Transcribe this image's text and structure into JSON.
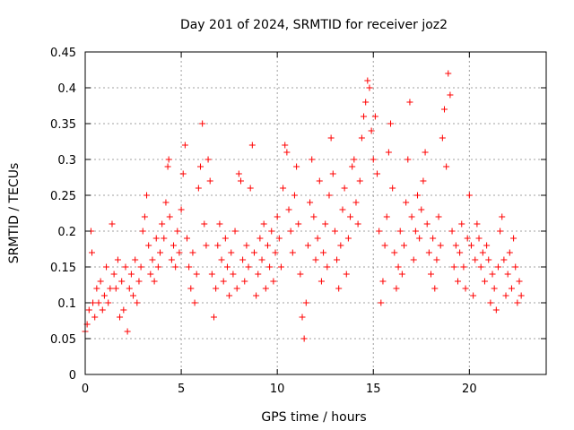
{
  "chart_data": {
    "type": "scatter",
    "title": "Day 201 of 2024, SRMTID for receiver joz2",
    "xlabel": "GPS time / hours",
    "ylabel": "SRMTID / TECUs",
    "xlim": [
      0,
      24
    ],
    "ylim": [
      0,
      0.45
    ],
    "x_ticks": [
      0,
      5,
      10,
      15,
      20
    ],
    "x_tick_labels": [
      "0",
      "5",
      "10",
      "15",
      "20"
    ],
    "y_ticks": [
      0,
      0.05,
      0.1,
      0.15,
      0.2,
      0.25,
      0.3,
      0.35,
      0.4,
      0.45
    ],
    "y_tick_labels": [
      "0",
      "0.05",
      "0.1",
      "0.15",
      "0.2",
      "0.25",
      "0.3",
      "0.35",
      "0.4",
      "0.45"
    ],
    "grid": true,
    "marker": "plus",
    "series": [
      {
        "name": "SRMTID",
        "color": "#ff0000",
        "points": [
          [
            0.0,
            0.06
          ],
          [
            0.1,
            0.07
          ],
          [
            0.2,
            0.09
          ],
          [
            0.3,
            0.2
          ],
          [
            0.35,
            0.17
          ],
          [
            0.4,
            0.1
          ],
          [
            0.5,
            0.08
          ],
          [
            0.6,
            0.12
          ],
          [
            0.7,
            0.1
          ],
          [
            0.8,
            0.13
          ],
          [
            0.9,
            0.09
          ],
          [
            1.0,
            0.11
          ],
          [
            1.1,
            0.15
          ],
          [
            1.2,
            0.1
          ],
          [
            1.3,
            0.12
          ],
          [
            1.4,
            0.21
          ],
          [
            1.5,
            0.14
          ],
          [
            1.6,
            0.12
          ],
          [
            1.7,
            0.16
          ],
          [
            1.8,
            0.08
          ],
          [
            1.9,
            0.13
          ],
          [
            2.0,
            0.09
          ],
          [
            2.1,
            0.15
          ],
          [
            2.2,
            0.06
          ],
          [
            2.3,
            0.12
          ],
          [
            2.4,
            0.14
          ],
          [
            2.5,
            0.11
          ],
          [
            2.6,
            0.16
          ],
          [
            2.7,
            0.1
          ],
          [
            2.8,
            0.13
          ],
          [
            2.9,
            0.15
          ],
          [
            3.0,
            0.2
          ],
          [
            3.1,
            0.22
          ],
          [
            3.2,
            0.25
          ],
          [
            3.3,
            0.18
          ],
          [
            3.4,
            0.14
          ],
          [
            3.5,
            0.16
          ],
          [
            3.6,
            0.13
          ],
          [
            3.7,
            0.19
          ],
          [
            3.8,
            0.15
          ],
          [
            3.9,
            0.17
          ],
          [
            4.0,
            0.21
          ],
          [
            4.1,
            0.19
          ],
          [
            4.2,
            0.24
          ],
          [
            4.3,
            0.29
          ],
          [
            4.35,
            0.3
          ],
          [
            4.4,
            0.22
          ],
          [
            4.5,
            0.16
          ],
          [
            4.6,
            0.18
          ],
          [
            4.7,
            0.15
          ],
          [
            4.8,
            0.2
          ],
          [
            4.9,
            0.17
          ],
          [
            5.0,
            0.23
          ],
          [
            5.1,
            0.28
          ],
          [
            5.2,
            0.32
          ],
          [
            5.3,
            0.19
          ],
          [
            5.4,
            0.15
          ],
          [
            5.5,
            0.12
          ],
          [
            5.6,
            0.17
          ],
          [
            5.7,
            0.1
          ],
          [
            5.8,
            0.14
          ],
          [
            5.9,
            0.26
          ],
          [
            6.0,
            0.29
          ],
          [
            6.1,
            0.35
          ],
          [
            6.2,
            0.21
          ],
          [
            6.3,
            0.18
          ],
          [
            6.4,
            0.3
          ],
          [
            6.5,
            0.27
          ],
          [
            6.6,
            0.14
          ],
          [
            6.7,
            0.08
          ],
          [
            6.8,
            0.12
          ],
          [
            6.9,
            0.18
          ],
          [
            7.0,
            0.21
          ],
          [
            7.1,
            0.16
          ],
          [
            7.2,
            0.13
          ],
          [
            7.3,
            0.19
          ],
          [
            7.4,
            0.15
          ],
          [
            7.5,
            0.11
          ],
          [
            7.6,
            0.17
          ],
          [
            7.7,
            0.14
          ],
          [
            7.8,
            0.2
          ],
          [
            7.9,
            0.12
          ],
          [
            8.0,
            0.28
          ],
          [
            8.1,
            0.27
          ],
          [
            8.2,
            0.16
          ],
          [
            8.3,
            0.13
          ],
          [
            8.4,
            0.18
          ],
          [
            8.5,
            0.15
          ],
          [
            8.6,
            0.26
          ],
          [
            8.7,
            0.32
          ],
          [
            8.8,
            0.17
          ],
          [
            8.9,
            0.11
          ],
          [
            9.0,
            0.14
          ],
          [
            9.1,
            0.19
          ],
          [
            9.2,
            0.16
          ],
          [
            9.3,
            0.21
          ],
          [
            9.4,
            0.12
          ],
          [
            9.5,
            0.18
          ],
          [
            9.6,
            0.15
          ],
          [
            9.7,
            0.2
          ],
          [
            9.8,
            0.13
          ],
          [
            9.9,
            0.17
          ],
          [
            10.0,
            0.22
          ],
          [
            10.1,
            0.19
          ],
          [
            10.2,
            0.15
          ],
          [
            10.3,
            0.26
          ],
          [
            10.4,
            0.32
          ],
          [
            10.5,
            0.31
          ],
          [
            10.6,
            0.23
          ],
          [
            10.7,
            0.2
          ],
          [
            10.8,
            0.17
          ],
          [
            10.9,
            0.25
          ],
          [
            11.0,
            0.29
          ],
          [
            11.1,
            0.21
          ],
          [
            11.2,
            0.14
          ],
          [
            11.3,
            0.08
          ],
          [
            11.4,
            0.05
          ],
          [
            11.5,
            0.1
          ],
          [
            11.6,
            0.18
          ],
          [
            11.7,
            0.24
          ],
          [
            11.8,
            0.3
          ],
          [
            11.9,
            0.22
          ],
          [
            12.0,
            0.16
          ],
          [
            12.1,
            0.19
          ],
          [
            12.2,
            0.27
          ],
          [
            12.3,
            0.13
          ],
          [
            12.4,
            0.17
          ],
          [
            12.5,
            0.21
          ],
          [
            12.6,
            0.15
          ],
          [
            12.7,
            0.25
          ],
          [
            12.8,
            0.33
          ],
          [
            12.9,
            0.28
          ],
          [
            13.0,
            0.2
          ],
          [
            13.1,
            0.16
          ],
          [
            13.2,
            0.12
          ],
          [
            13.3,
            0.18
          ],
          [
            13.4,
            0.23
          ],
          [
            13.5,
            0.26
          ],
          [
            13.6,
            0.14
          ],
          [
            13.7,
            0.19
          ],
          [
            13.8,
            0.22
          ],
          [
            13.9,
            0.29
          ],
          [
            14.0,
            0.3
          ],
          [
            14.1,
            0.24
          ],
          [
            14.2,
            0.21
          ],
          [
            14.3,
            0.27
          ],
          [
            14.4,
            0.33
          ],
          [
            14.5,
            0.36
          ],
          [
            14.6,
            0.38
          ],
          [
            14.7,
            0.41
          ],
          [
            14.8,
            0.4
          ],
          [
            14.9,
            0.34
          ],
          [
            15.0,
            0.3
          ],
          [
            15.1,
            0.36
          ],
          [
            15.2,
            0.28
          ],
          [
            15.3,
            0.2
          ],
          [
            15.4,
            0.1
          ],
          [
            15.5,
            0.13
          ],
          [
            15.6,
            0.18
          ],
          [
            15.7,
            0.22
          ],
          [
            15.8,
            0.31
          ],
          [
            15.9,
            0.35
          ],
          [
            16.0,
            0.26
          ],
          [
            16.1,
            0.17
          ],
          [
            16.2,
            0.12
          ],
          [
            16.3,
            0.15
          ],
          [
            16.4,
            0.2
          ],
          [
            16.5,
            0.14
          ],
          [
            16.6,
            0.18
          ],
          [
            16.7,
            0.24
          ],
          [
            16.8,
            0.3
          ],
          [
            16.9,
            0.38
          ],
          [
            17.0,
            0.22
          ],
          [
            17.1,
            0.16
          ],
          [
            17.2,
            0.2
          ],
          [
            17.3,
            0.25
          ],
          [
            17.4,
            0.19
          ],
          [
            17.5,
            0.23
          ],
          [
            17.6,
            0.27
          ],
          [
            17.7,
            0.31
          ],
          [
            17.8,
            0.21
          ],
          [
            17.9,
            0.17
          ],
          [
            18.0,
            0.14
          ],
          [
            18.1,
            0.19
          ],
          [
            18.2,
            0.12
          ],
          [
            18.3,
            0.16
          ],
          [
            18.4,
            0.22
          ],
          [
            18.5,
            0.18
          ],
          [
            18.6,
            0.33
          ],
          [
            18.7,
            0.37
          ],
          [
            18.8,
            0.29
          ],
          [
            18.9,
            0.42
          ],
          [
            19.0,
            0.39
          ],
          [
            19.1,
            0.2
          ],
          [
            19.2,
            0.15
          ],
          [
            19.3,
            0.18
          ],
          [
            19.4,
            0.13
          ],
          [
            19.5,
            0.17
          ],
          [
            19.6,
            0.21
          ],
          [
            19.7,
            0.15
          ],
          [
            19.8,
            0.12
          ],
          [
            19.9,
            0.19
          ],
          [
            20.0,
            0.25
          ],
          [
            20.1,
            0.18
          ],
          [
            20.2,
            0.11
          ],
          [
            20.3,
            0.16
          ],
          [
            20.4,
            0.21
          ],
          [
            20.5,
            0.19
          ],
          [
            20.6,
            0.15
          ],
          [
            20.7,
            0.17
          ],
          [
            20.8,
            0.13
          ],
          [
            20.9,
            0.18
          ],
          [
            21.0,
            0.16
          ],
          [
            21.1,
            0.1
          ],
          [
            21.2,
            0.14
          ],
          [
            21.3,
            0.12
          ],
          [
            21.4,
            0.09
          ],
          [
            21.5,
            0.15
          ],
          [
            21.6,
            0.2
          ],
          [
            21.7,
            0.22
          ],
          [
            21.8,
            0.16
          ],
          [
            21.9,
            0.11
          ],
          [
            22.0,
            0.14
          ],
          [
            22.1,
            0.17
          ],
          [
            22.2,
            0.12
          ],
          [
            22.3,
            0.19
          ],
          [
            22.4,
            0.15
          ],
          [
            22.5,
            0.1
          ],
          [
            22.6,
            0.13
          ],
          [
            22.7,
            0.11
          ]
        ]
      }
    ]
  }
}
